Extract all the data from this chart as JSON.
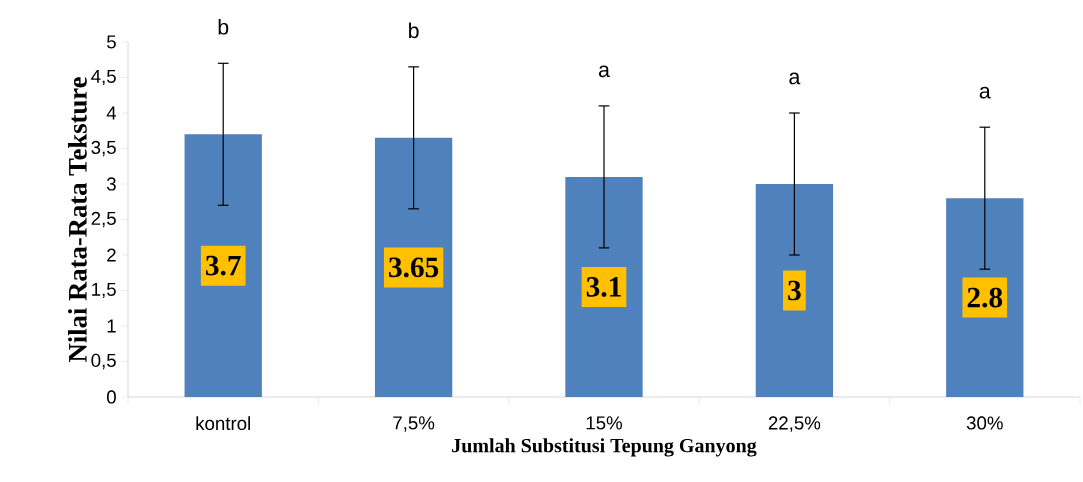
{
  "chart_data": {
    "type": "bar",
    "xlabel": "Jumlah Substitusi Tepung Ganyong",
    "ylabel": "Nilai Rata-Rata Teksture",
    "categories": [
      "kontrol",
      "7,5%",
      "15%",
      "22,5%",
      "30%"
    ],
    "values": [
      3.7,
      3.65,
      3.1,
      3,
      2.8
    ],
    "errors": [
      1,
      1,
      1,
      1,
      1
    ],
    "value_labels": [
      "3.7",
      "3.65",
      "3.1",
      "3",
      "2.8"
    ],
    "color": "#4f81bd",
    "ylim": [
      0,
      5
    ],
    "yticks": [
      0,
      {
        "value": 0.5,
        "label": "0,5"
      },
      1,
      {
        "value": 1.5,
        "label": "1,5"
      },
      2,
      {
        "value": 2.5,
        "label": "2,5"
      },
      3,
      {
        "value": 3.5,
        "label": "3,5"
      },
      4,
      {
        "value": 4.5,
        "label": "4,5"
      },
      5
    ],
    "annotations": [
      {
        "text": "b",
        "x": "kontrol",
        "y": 4.7
      },
      {
        "text": "b",
        "x": "7,5%",
        "y": 4.65
      },
      {
        "text": "a",
        "x": "15%",
        "y": 4.1
      },
      {
        "text": "a",
        "x": "22,5%",
        "y": 4
      },
      {
        "text": "a",
        "x": "30%",
        "y": 3.8
      }
    ],
    "grid": false
  }
}
